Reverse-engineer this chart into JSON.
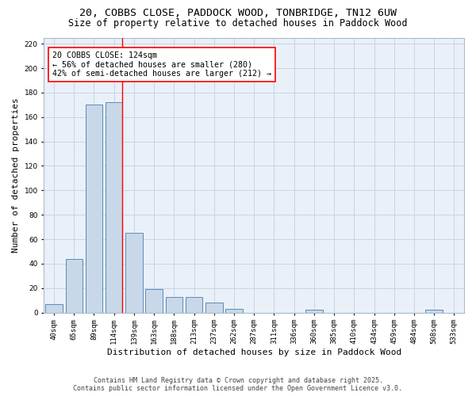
{
  "title_line1": "20, COBBS CLOSE, PADDOCK WOOD, TONBRIDGE, TN12 6UW",
  "title_line2": "Size of property relative to detached houses in Paddock Wood",
  "xlabel": "Distribution of detached houses by size in Paddock Wood",
  "ylabel": "Number of detached properties",
  "categories": [
    "40sqm",
    "65sqm",
    "89sqm",
    "114sqm",
    "139sqm",
    "163sqm",
    "188sqm",
    "213sqm",
    "237sqm",
    "262sqm",
    "287sqm",
    "311sqm",
    "336sqm",
    "360sqm",
    "385sqm",
    "410sqm",
    "434sqm",
    "459sqm",
    "484sqm",
    "508sqm",
    "533sqm"
  ],
  "values": [
    7,
    44,
    170,
    172,
    65,
    19,
    13,
    13,
    8,
    3,
    0,
    0,
    0,
    2,
    0,
    0,
    0,
    0,
    0,
    2,
    0
  ],
  "bar_color": "#c8d8e8",
  "bar_edge_color": "#5b8db8",
  "grid_color": "#c5d5e8",
  "background_color": "#eaf0f8",
  "vline_x_index": 3.4,
  "vline_color": "red",
  "annotation_text": "20 COBBS CLOSE: 124sqm\n← 56% of detached houses are smaller (280)\n42% of semi-detached houses are larger (212) →",
  "annotation_box_color": "white",
  "annotation_edge_color": "red",
  "ylim": [
    0,
    225
  ],
  "yticks": [
    0,
    20,
    40,
    60,
    80,
    100,
    120,
    140,
    160,
    180,
    200,
    220
  ],
  "footer_line1": "Contains HM Land Registry data © Crown copyright and database right 2025.",
  "footer_line2": "Contains public sector information licensed under the Open Government Licence v3.0.",
  "title_fontsize": 9.5,
  "subtitle_fontsize": 8.5,
  "axis_label_fontsize": 8,
  "tick_fontsize": 6.5,
  "annotation_fontsize": 7.2,
  "footer_fontsize": 6.0
}
